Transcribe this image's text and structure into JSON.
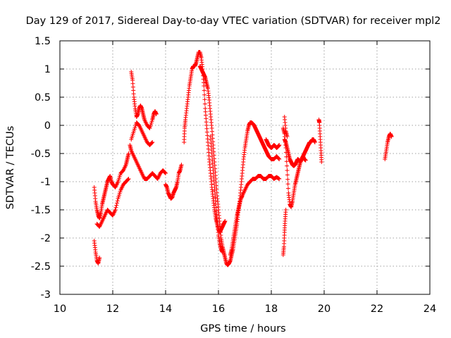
{
  "chart_data": {
    "type": "scatter",
    "title": "Day 129 of 2017, Sidereal Day-to-day VTEC variation (SDTVAR) for receiver mpl2",
    "xlabel": "GPS time / hours",
    "ylabel": "SDTVAR / TECUs",
    "xlim": [
      10,
      24
    ],
    "ylim": [
      -3,
      1.5
    ],
    "x_ticks": [
      10,
      12,
      14,
      16,
      18,
      20,
      22,
      24
    ],
    "y_ticks": [
      -3,
      -2.5,
      -2,
      -1.5,
      -1,
      -0.5,
      0,
      0.5,
      1,
      1.5
    ],
    "x_tick_labels": [
      "10",
      "12",
      "14",
      "16",
      "18",
      "20",
      "22",
      "24"
    ],
    "y_tick_labels": [
      "-3",
      "-2.5",
      "-2",
      "-1.5",
      "-1",
      "-0.5",
      "0",
      "0.5",
      "1",
      "1.5"
    ],
    "grid": true,
    "marker": "+",
    "color": "#ff0000",
    "series": [
      {
        "name": "SDTVAR",
        "tracks": [
          {
            "x": [
              11.3,
              11.35,
              11.4,
              11.45,
              11.5,
              11.55,
              11.6,
              11.65,
              11.7,
              11.75,
              11.8,
              11.85,
              11.9,
              11.95,
              12.0,
              12.1,
              12.2,
              12.3,
              12.4,
              12.5,
              12.55,
              12.6
            ],
            "y": [
              -1.1,
              -1.35,
              -1.5,
              -1.6,
              -1.65,
              -1.55,
              -1.4,
              -1.3,
              -1.2,
              -1.1,
              -1.0,
              -0.95,
              -0.9,
              -1.0,
              -1.05,
              -1.1,
              -1.0,
              -0.85,
              -0.8,
              -0.7,
              -0.6,
              -0.5
            ]
          },
          {
            "x": [
              11.3,
              11.35,
              11.4,
              11.45,
              11.5
            ],
            "y": [
              -2.05,
              -2.25,
              -2.4,
              -2.45,
              -2.35
            ]
          },
          {
            "x": [
              11.4,
              11.5,
              11.6,
              11.7,
              11.8,
              11.9,
              12.0,
              12.1,
              12.2,
              12.3,
              12.4,
              12.5,
              12.6
            ],
            "y": [
              -1.75,
              -1.8,
              -1.7,
              -1.6,
              -1.5,
              -1.55,
              -1.6,
              -1.5,
              -1.3,
              -1.15,
              -1.05,
              -1.0,
              -0.95
            ]
          },
          {
            "x": [
              12.7,
              12.75,
              12.8,
              12.85,
              12.9,
              12.95,
              13.0,
              13.05,
              13.1,
              13.15,
              13.2,
              13.3,
              13.4,
              13.5,
              13.55,
              13.6,
              13.65
            ],
            "y": [
              0.95,
              0.8,
              0.5,
              0.3,
              0.15,
              0.2,
              0.3,
              0.35,
              0.3,
              0.2,
              0.1,
              0.0,
              -0.05,
              0.1,
              0.2,
              0.25,
              0.2
            ]
          },
          {
            "x": [
              12.65,
              12.7,
              12.8,
              12.9,
              13.0,
              13.1,
              13.2,
              13.3,
              13.4,
              13.5,
              13.6,
              13.7,
              13.8,
              13.9,
              14.0
            ],
            "y": [
              -0.35,
              -0.45,
              -0.55,
              -0.65,
              -0.75,
              -0.85,
              -0.95,
              -0.95,
              -0.9,
              -0.85,
              -0.9,
              -0.95,
              -0.85,
              -0.8,
              -0.85
            ]
          },
          {
            "x": [
              12.7,
              12.8,
              12.9,
              13.0,
              13.1,
              13.2,
              13.3,
              13.4,
              13.5
            ],
            "y": [
              -0.25,
              -0.1,
              0.05,
              0.0,
              -0.1,
              -0.2,
              -0.3,
              -0.35,
              -0.3
            ]
          },
          {
            "x": [
              14.0,
              14.05,
              14.1,
              14.15,
              14.2,
              14.25,
              14.3,
              14.35,
              14.4,
              14.45,
              14.5,
              14.55,
              14.6
            ],
            "y": [
              -1.05,
              -1.1,
              -1.2,
              -1.25,
              -1.3,
              -1.28,
              -1.2,
              -1.15,
              -1.1,
              -1.0,
              -0.85,
              -0.8,
              -0.7
            ]
          },
          {
            "x": [
              14.7,
              14.72,
              14.75,
              14.8,
              14.85,
              14.9,
              14.95,
              15.0,
              15.05,
              15.1,
              15.15,
              15.2,
              15.25,
              15.3,
              15.35,
              15.4,
              15.45,
              15.5,
              15.55,
              15.6,
              15.65,
              15.7,
              15.75,
              15.8,
              15.85,
              15.9,
              15.95,
              16.0,
              16.05,
              16.1,
              16.15,
              16.2,
              16.25
            ],
            "y": [
              -0.3,
              -0.05,
              0.1,
              0.3,
              0.5,
              0.7,
              0.85,
              1.0,
              1.05,
              1.05,
              1.1,
              1.2,
              1.3,
              1.3,
              1.2,
              1.0,
              0.7,
              0.3,
              0.0,
              -0.3,
              -0.6,
              -0.85,
              -1.1,
              -1.3,
              -1.5,
              -1.65,
              -1.75,
              -1.85,
              -1.9,
              -1.85,
              -1.8,
              -1.75,
              -1.7
            ]
          },
          {
            "x": [
              15.3,
              15.35,
              15.4,
              15.45,
              15.5,
              15.55,
              15.6,
              15.65,
              15.7,
              15.75,
              15.8,
              15.85,
              15.9,
              15.95,
              16.0,
              16.05,
              16.1,
              16.15,
              16.2,
              16.25,
              16.3,
              16.35,
              16.4,
              16.45,
              16.5,
              16.55,
              16.6,
              16.65,
              16.7,
              16.75,
              16.8,
              16.85,
              16.9,
              16.95,
              17.0,
              17.05,
              17.1,
              17.15,
              17.2,
              17.25,
              17.3,
              17.35,
              17.4,
              17.45,
              17.5,
              17.55,
              17.6,
              17.65,
              17.7,
              17.75,
              17.8,
              17.85,
              17.9,
              18.0,
              18.1,
              18.2,
              18.3
            ],
            "y": [
              1.05,
              1.0,
              0.95,
              0.9,
              0.85,
              0.75,
              0.65,
              0.45,
              0.2,
              -0.05,
              -0.35,
              -0.65,
              -0.95,
              -1.25,
              -1.5,
              -1.75,
              -2.0,
              -2.15,
              -2.25,
              -2.35,
              -2.45,
              -2.48,
              -2.45,
              -2.4,
              -2.3,
              -2.2,
              -2.05,
              -1.9,
              -1.75,
              -1.55,
              -1.35,
              -1.1,
              -0.85,
              -0.6,
              -0.4,
              -0.25,
              -0.1,
              0.0,
              0.05,
              0.05,
              0.03,
              0.0,
              -0.05,
              -0.1,
              -0.15,
              -0.2,
              -0.25,
              -0.3,
              -0.35,
              -0.4,
              -0.45,
              -0.5,
              -0.55,
              -0.6,
              -0.6,
              -0.55,
              -0.6
            ]
          },
          {
            "x": [
              15.7,
              15.75,
              15.8,
              15.85,
              15.9,
              15.95,
              16.0,
              16.05,
              16.1,
              16.15
            ],
            "y": [
              -0.2,
              -0.5,
              -0.8,
              -1.1,
              -1.4,
              -1.7,
              -1.95,
              -2.1,
              -2.2,
              -2.25
            ]
          },
          {
            "x": [
              16.45,
              16.5,
              16.55,
              16.6,
              16.65,
              16.7,
              16.75,
              16.8,
              16.85,
              16.9,
              17.0,
              17.1,
              17.2,
              17.3,
              17.4,
              17.5,
              17.6,
              17.7,
              17.8,
              17.9,
              18.0,
              18.1,
              18.2,
              18.3
            ],
            "y": [
              -2.3,
              -2.2,
              -2.05,
              -1.9,
              -1.75,
              -1.6,
              -1.5,
              -1.4,
              -1.3,
              -1.25,
              -1.15,
              -1.05,
              -1.0,
              -0.95,
              -0.95,
              -0.9,
              -0.9,
              -0.95,
              -0.95,
              -0.9,
              -0.9,
              -0.95,
              -0.92,
              -0.95
            ]
          },
          {
            "x": [
              17.8,
              17.85,
              17.9,
              17.95,
              18.0,
              18.05,
              18.1,
              18.15,
              18.2,
              18.25,
              18.3
            ],
            "y": [
              -0.25,
              -0.3,
              -0.35,
              -0.38,
              -0.4,
              -0.38,
              -0.35,
              -0.37,
              -0.4,
              -0.38,
              -0.35
            ]
          },
          {
            "x": [
              18.45,
              18.5,
              18.55,
              18.6,
              18.65,
              18.7,
              18.75,
              18.8,
              18.85,
              18.9,
              18.95,
              19.0,
              19.05,
              19.1,
              19.15,
              19.2,
              19.25,
              19.3,
              19.35,
              19.4,
              19.45,
              19.5,
              19.55,
              19.6,
              19.65
            ],
            "y": [
              -0.05,
              -0.15,
              -0.4,
              -0.8,
              -1.2,
              -1.4,
              -1.45,
              -1.35,
              -1.2,
              -1.05,
              -0.95,
              -0.85,
              -0.75,
              -0.65,
              -0.6,
              -0.55,
              -0.5,
              -0.45,
              -0.4,
              -0.35,
              -0.3,
              -0.3,
              -0.25,
              -0.25,
              -0.3
            ]
          },
          {
            "x": [
              18.5,
              18.55,
              18.6,
              18.65,
              18.7,
              18.75,
              18.8,
              18.85,
              18.9,
              18.95,
              19.0,
              19.05,
              19.1,
              19.15,
              19.2,
              19.25,
              19.3
            ],
            "y": [
              -0.25,
              -0.3,
              -0.4,
              -0.5,
              -0.6,
              -0.65,
              -0.7,
              -0.72,
              -0.7,
              -0.65,
              -0.6,
              -0.62,
              -0.65,
              -0.6,
              -0.55,
              -0.6,
              -0.62
            ]
          },
          {
            "x": [
              18.45,
              18.48,
              18.5,
              18.52,
              18.55
            ],
            "y": [
              -2.3,
              -2.15,
              -1.9,
              -1.7,
              -1.5
            ]
          },
          {
            "x": [
              18.5,
              18.55,
              18.6
            ],
            "y": [
              0.15,
              -0.1,
              -0.2
            ]
          },
          {
            "x": [
              19.8,
              19.82,
              19.85,
              19.88,
              19.9
            ],
            "y": [
              0.1,
              0.05,
              -0.2,
              -0.45,
              -0.65
            ]
          },
          {
            "x": [
              22.3,
              22.35,
              22.4,
              22.45,
              22.5,
              22.55
            ],
            "y": [
              -0.6,
              -0.45,
              -0.3,
              -0.2,
              -0.15,
              -0.2
            ]
          }
        ]
      }
    ]
  }
}
